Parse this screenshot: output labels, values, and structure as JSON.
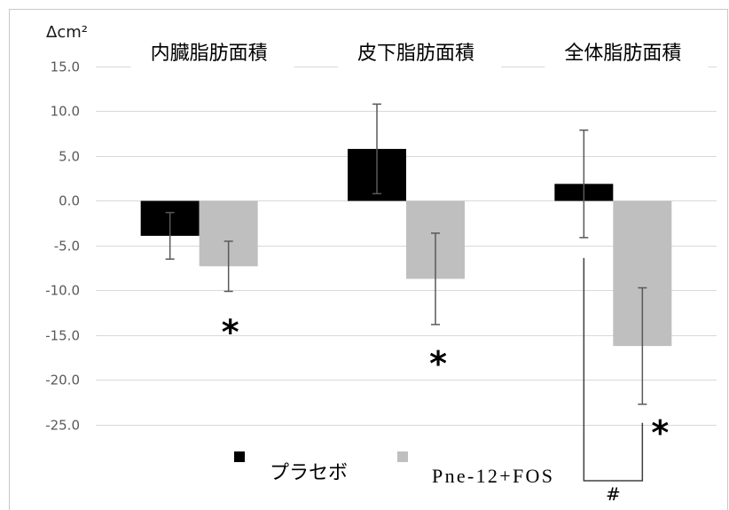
{
  "chart_data": {
    "type": "bar",
    "ylabel": "Δcm²",
    "ylim": [
      -25,
      15
    ],
    "yticks": [
      "15.0",
      "10.0",
      "5.0",
      "0.0",
      "-5.0",
      "-10.0",
      "-15.0",
      "-20.0",
      "-25.0"
    ],
    "grid": true,
    "legend": "bottom",
    "categories": [
      "内臓脂肪面積",
      "皮下脂肪面積",
      "全体脂肪面積"
    ],
    "series": [
      {
        "name": "プラセボ",
        "color": "#000000",
        "values": [
          -3.9,
          5.8,
          1.9
        ],
        "errors": [
          2.6,
          5.0,
          6.0
        ]
      },
      {
        "name": "Pne-12+FOS",
        "color": "#bfbfbf",
        "values": [
          -7.3,
          -8.7,
          -16.2
        ],
        "errors": [
          2.8,
          5.1,
          6.5
        ]
      }
    ],
    "significance": [
      {
        "label": "*",
        "category": 0,
        "series": 1
      },
      {
        "label": "*",
        "category": 1,
        "series": 1
      },
      {
        "label": "*",
        "category": 2,
        "series": 1
      }
    ],
    "comparisons": [
      {
        "label": "#",
        "category": 2,
        "series": [
          0,
          1
        ]
      }
    ]
  }
}
